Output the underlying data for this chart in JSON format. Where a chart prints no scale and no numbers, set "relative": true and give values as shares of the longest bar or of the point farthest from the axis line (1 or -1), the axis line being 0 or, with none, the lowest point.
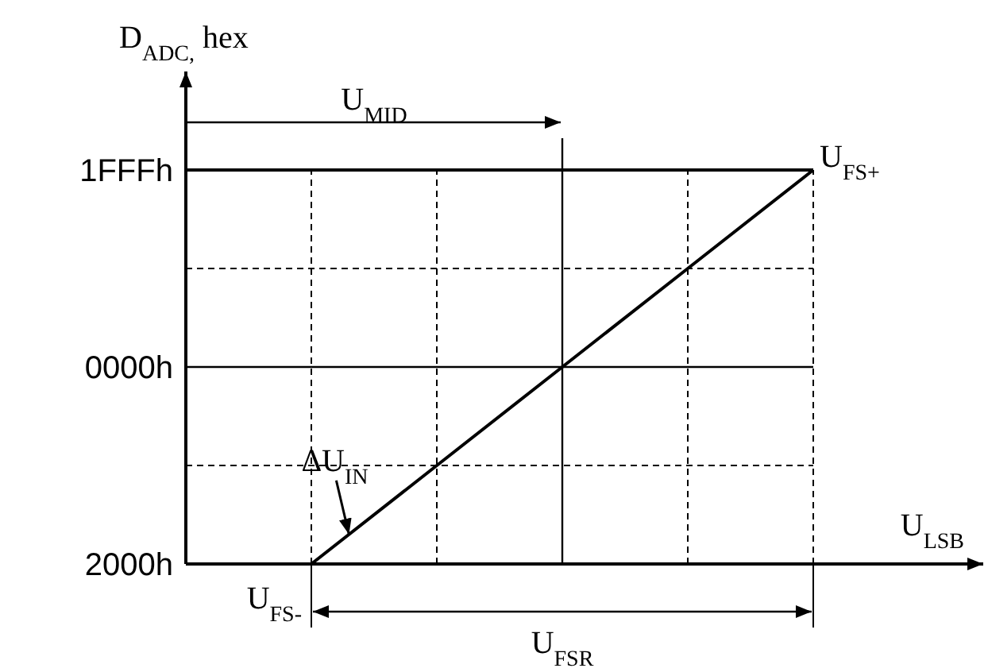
{
  "chart_data": {
    "type": "line",
    "xlabel": "U$_{LSB}$",
    "ylabel": "D$_{ADC,}$ hex",
    "categories": [
      null,
      null,
      null,
      null,
      null,
      null,
      null
    ],
    "relative": true,
    "grid": "x",
    "marker": "none",
    "line_style": "solid",
    "series": [
      {
        "color": "#000000",
        "values": [
          null,
          0,
          0.25,
          0.5,
          0.75,
          1,
          null
        ]
      }
    ],
    "ref_lines": [
      {
        "axis": "y",
        "value": 0,
        "label": "2000h"
      },
      {
        "axis": "y",
        "value": 0.25,
        "line_style": "dashed"
      },
      {
        "axis": "y",
        "value": 0.5,
        "label": "0000h"
      },
      {
        "axis": "y",
        "value": 0.75,
        "line_style": "dashed"
      },
      {
        "axis": "y",
        "value": 1,
        "label": "1FFFh"
      }
    ],
    "annotations": [
      "U$_{MID}$",
      "U$_{FSR}$",
      "U$_{FS-}$",
      "U$_{FS+}$",
      "ΔU$_{IN}$"
    ]
  }
}
